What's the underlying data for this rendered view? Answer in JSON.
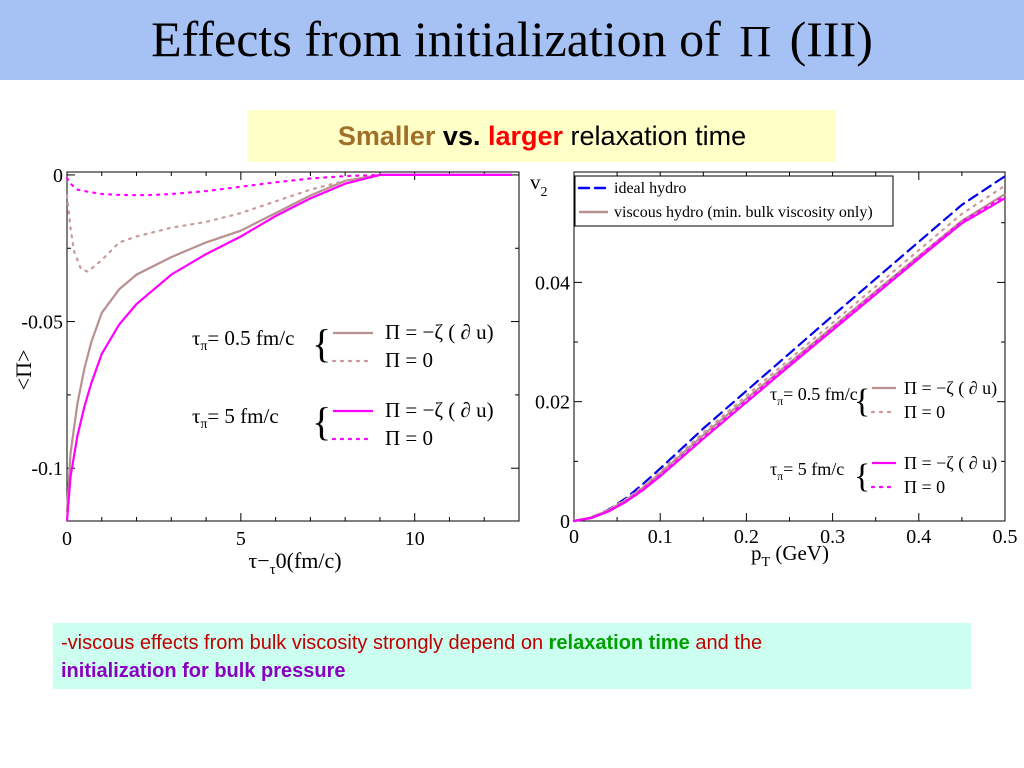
{
  "slide": {
    "title_main": "Effects from initialization of",
    "title_symbol": "Π",
    "title_suffix": "(III)",
    "subtitle": {
      "smaller": "Smaller",
      "vs": "vs.",
      "larger": "larger",
      "rest": "relaxation time"
    },
    "note": {
      "part1": "-viscous effects from bulk viscosity strongly depend on",
      "highlight1": "relaxation time",
      "part2": "and the",
      "highlight2": "initialization for bulk pressure"
    }
  },
  "chart_data": [
    {
      "type": "line",
      "xlabel": "τ−τ0(fm/c)",
      "ylabel": "<Π>",
      "xlim": [
        0,
        13
      ],
      "ylim": [
        -0.118,
        0.001
      ],
      "xticks": [
        0,
        5,
        10
      ],
      "yticks": [
        0,
        -0.05,
        -0.1
      ],
      "xtick_labels": [
        "0",
        "5",
        "10"
      ],
      "ytick_labels": [
        "0",
        "-0.05",
        "-0.1"
      ],
      "grid": false,
      "series": [
        {
          "color": "#b89090",
          "style": "solid",
          "x": [
            0,
            0.1,
            0.3,
            0.5,
            0.7,
            1,
            1.5,
            2,
            3,
            4,
            5,
            6,
            7,
            8,
            9,
            10,
            11,
            12,
            12.8
          ],
          "y": [
            -0.115,
            -0.095,
            -0.078,
            -0.066,
            -0.057,
            -0.047,
            -0.039,
            -0.034,
            -0.028,
            -0.023,
            -0.019,
            -0.013,
            -0.007,
            -0.002,
            0,
            0,
            0,
            0,
            0
          ]
        },
        {
          "color": "#cc9999",
          "style": "dotted",
          "x": [
            0,
            0.1,
            0.2,
            0.4,
            0.6,
            0.8,
            1,
            1.5,
            2,
            3,
            4,
            5,
            6,
            7,
            8,
            9,
            10,
            11,
            12,
            12.8
          ],
          "y": [
            -0.007,
            -0.018,
            -0.026,
            -0.032,
            -0.033,
            -0.031,
            -0.029,
            -0.023,
            -0.021,
            -0.018,
            -0.016,
            -0.013,
            -0.009,
            -0.005,
            -0.002,
            0,
            0,
            0,
            0,
            0
          ]
        },
        {
          "color": "#ff00ff",
          "style": "solid",
          "x": [
            0,
            0.1,
            0.3,
            0.5,
            0.7,
            1,
            1.5,
            2,
            3,
            4,
            5,
            6,
            7,
            8,
            9,
            10,
            11,
            12,
            12.8
          ],
          "y": [
            -0.118,
            -0.103,
            -0.089,
            -0.079,
            -0.071,
            -0.061,
            -0.051,
            -0.044,
            -0.034,
            -0.027,
            -0.021,
            -0.014,
            -0.008,
            -0.003,
            0,
            0,
            0,
            0,
            0
          ]
        },
        {
          "color": "#ff00ff",
          "style": "dotted",
          "x": [
            0,
            0.1,
            0.3,
            0.5,
            1,
            1.5,
            2,
            2.5,
            3,
            4,
            5,
            6,
            7,
            8,
            9,
            10,
            11,
            12,
            12.8
          ],
          "y": [
            -0.001,
            -0.003,
            -0.005,
            -0.0055,
            -0.0065,
            -0.0068,
            -0.0069,
            -0.0068,
            -0.0065,
            -0.0055,
            -0.004,
            -0.0025,
            -0.0012,
            -0.0004,
            0,
            0,
            0,
            0,
            0
          ]
        }
      ],
      "legend": {
        "groups": [
          {
            "label": "τπ= 0.5 fm/c",
            "entries": [
              {
                "label": "Π = −ζ ( ∂ u)",
                "color": "#b89090",
                "style": "solid"
              },
              {
                "label": "Π = 0",
                "color": "#cc9999",
                "style": "dotted"
              }
            ]
          },
          {
            "label": "τπ= 5 fm/c",
            "entries": [
              {
                "label": "Π = −ζ ( ∂ u)",
                "color": "#ff00ff",
                "style": "solid"
              },
              {
                "label": "Π = 0",
                "color": "#ff00ff",
                "style": "dotted"
              }
            ]
          }
        ]
      }
    },
    {
      "type": "line",
      "xlabel": "pT (GeV)",
      "ylabel": "v2",
      "xlim": [
        0,
        0.5
      ],
      "ylim": [
        0,
        0.0585
      ],
      "xticks": [
        0,
        0.1,
        0.2,
        0.3,
        0.4,
        0.5
      ],
      "yticks": [
        0,
        0.02,
        0.04
      ],
      "xtick_labels": [
        "0",
        "0.1",
        "0.2",
        "0.3",
        "0.4",
        "0.5"
      ],
      "ytick_labels": [
        "0",
        "0.02",
        "0.04"
      ],
      "grid": false,
      "series": [
        {
          "name": "ideal hydro",
          "color": "#0000ee",
          "style": "dashed",
          "x": [
            0,
            0.02,
            0.04,
            0.06,
            0.08,
            0.1,
            0.15,
            0.2,
            0.25,
            0.3,
            0.35,
            0.4,
            0.45,
            0.5
          ],
          "y": [
            0,
            0.0006,
            0.0019,
            0.0038,
            0.0062,
            0.0088,
            0.0155,
            0.0218,
            0.0281,
            0.0344,
            0.0406,
            0.0468,
            0.053,
            0.0578
          ]
        },
        {
          "name": "viscous hydro (min. bulk viscosity only)",
          "color": "#b89090",
          "style": "solid",
          "x": [
            0,
            0.02,
            0.04,
            0.06,
            0.08,
            0.1,
            0.15,
            0.2,
            0.25,
            0.3,
            0.35,
            0.4,
            0.45,
            0.5
          ],
          "y": [
            0,
            0.0006,
            0.0018,
            0.0035,
            0.0056,
            0.008,
            0.0144,
            0.0205,
            0.0265,
            0.0325,
            0.0385,
            0.0444,
            0.0503,
            0.0548
          ]
        },
        {
          "color": "#cc9999",
          "style": "dotted",
          "x": [
            0,
            0.02,
            0.04,
            0.06,
            0.08,
            0.1,
            0.15,
            0.2,
            0.25,
            0.3,
            0.35,
            0.4,
            0.45,
            0.5
          ],
          "y": [
            0,
            0.0006,
            0.0019,
            0.0036,
            0.0058,
            0.0083,
            0.0148,
            0.021,
            0.0271,
            0.0332,
            0.0393,
            0.0454,
            0.0515,
            0.0562
          ]
        },
        {
          "color": "#ff00ff",
          "style": "solid",
          "x": [
            0,
            0.02,
            0.04,
            0.06,
            0.08,
            0.1,
            0.15,
            0.2,
            0.25,
            0.3,
            0.35,
            0.4,
            0.45,
            0.5
          ],
          "y": [
            0,
            0.0005,
            0.0016,
            0.0032,
            0.0052,
            0.0075,
            0.0138,
            0.0199,
            0.026,
            0.032,
            0.038,
            0.044,
            0.0499,
            0.0541
          ]
        },
        {
          "color": "#ff00ff",
          "style": "dotted",
          "x": [
            0,
            0.02,
            0.04,
            0.06,
            0.08,
            0.1,
            0.15,
            0.2,
            0.25,
            0.3,
            0.35,
            0.4,
            0.45,
            0.5
          ],
          "y": [
            0,
            0.0005,
            0.0017,
            0.0033,
            0.0054,
            0.0077,
            0.014,
            0.0202,
            0.0263,
            0.0323,
            0.0383,
            0.0443,
            0.0502,
            0.0545
          ]
        }
      ],
      "legend": {
        "position": "top",
        "entries": [
          {
            "label": "ideal hydro",
            "color": "#0000ee",
            "style": "dashed"
          },
          {
            "label": "viscous hydro (min. bulk viscosity only)",
            "color": "#b89090",
            "style": "solid"
          }
        ],
        "groups": [
          {
            "label": "τπ= 0.5 fm/c",
            "entries": [
              {
                "label": "Π = −ζ ( ∂ u)",
                "color": "#b89090",
                "style": "solid"
              },
              {
                "label": "Π = 0",
                "color": "#cc9999",
                "style": "dotted"
              }
            ]
          },
          {
            "label": "τπ= 5 fm/c",
            "entries": [
              {
                "label": "Π = −ζ ( ∂ u)",
                "color": "#ff00ff",
                "style": "solid"
              },
              {
                "label": "Π = 0",
                "color": "#ff00ff",
                "style": "dotted"
              }
            ]
          }
        ]
      }
    }
  ]
}
